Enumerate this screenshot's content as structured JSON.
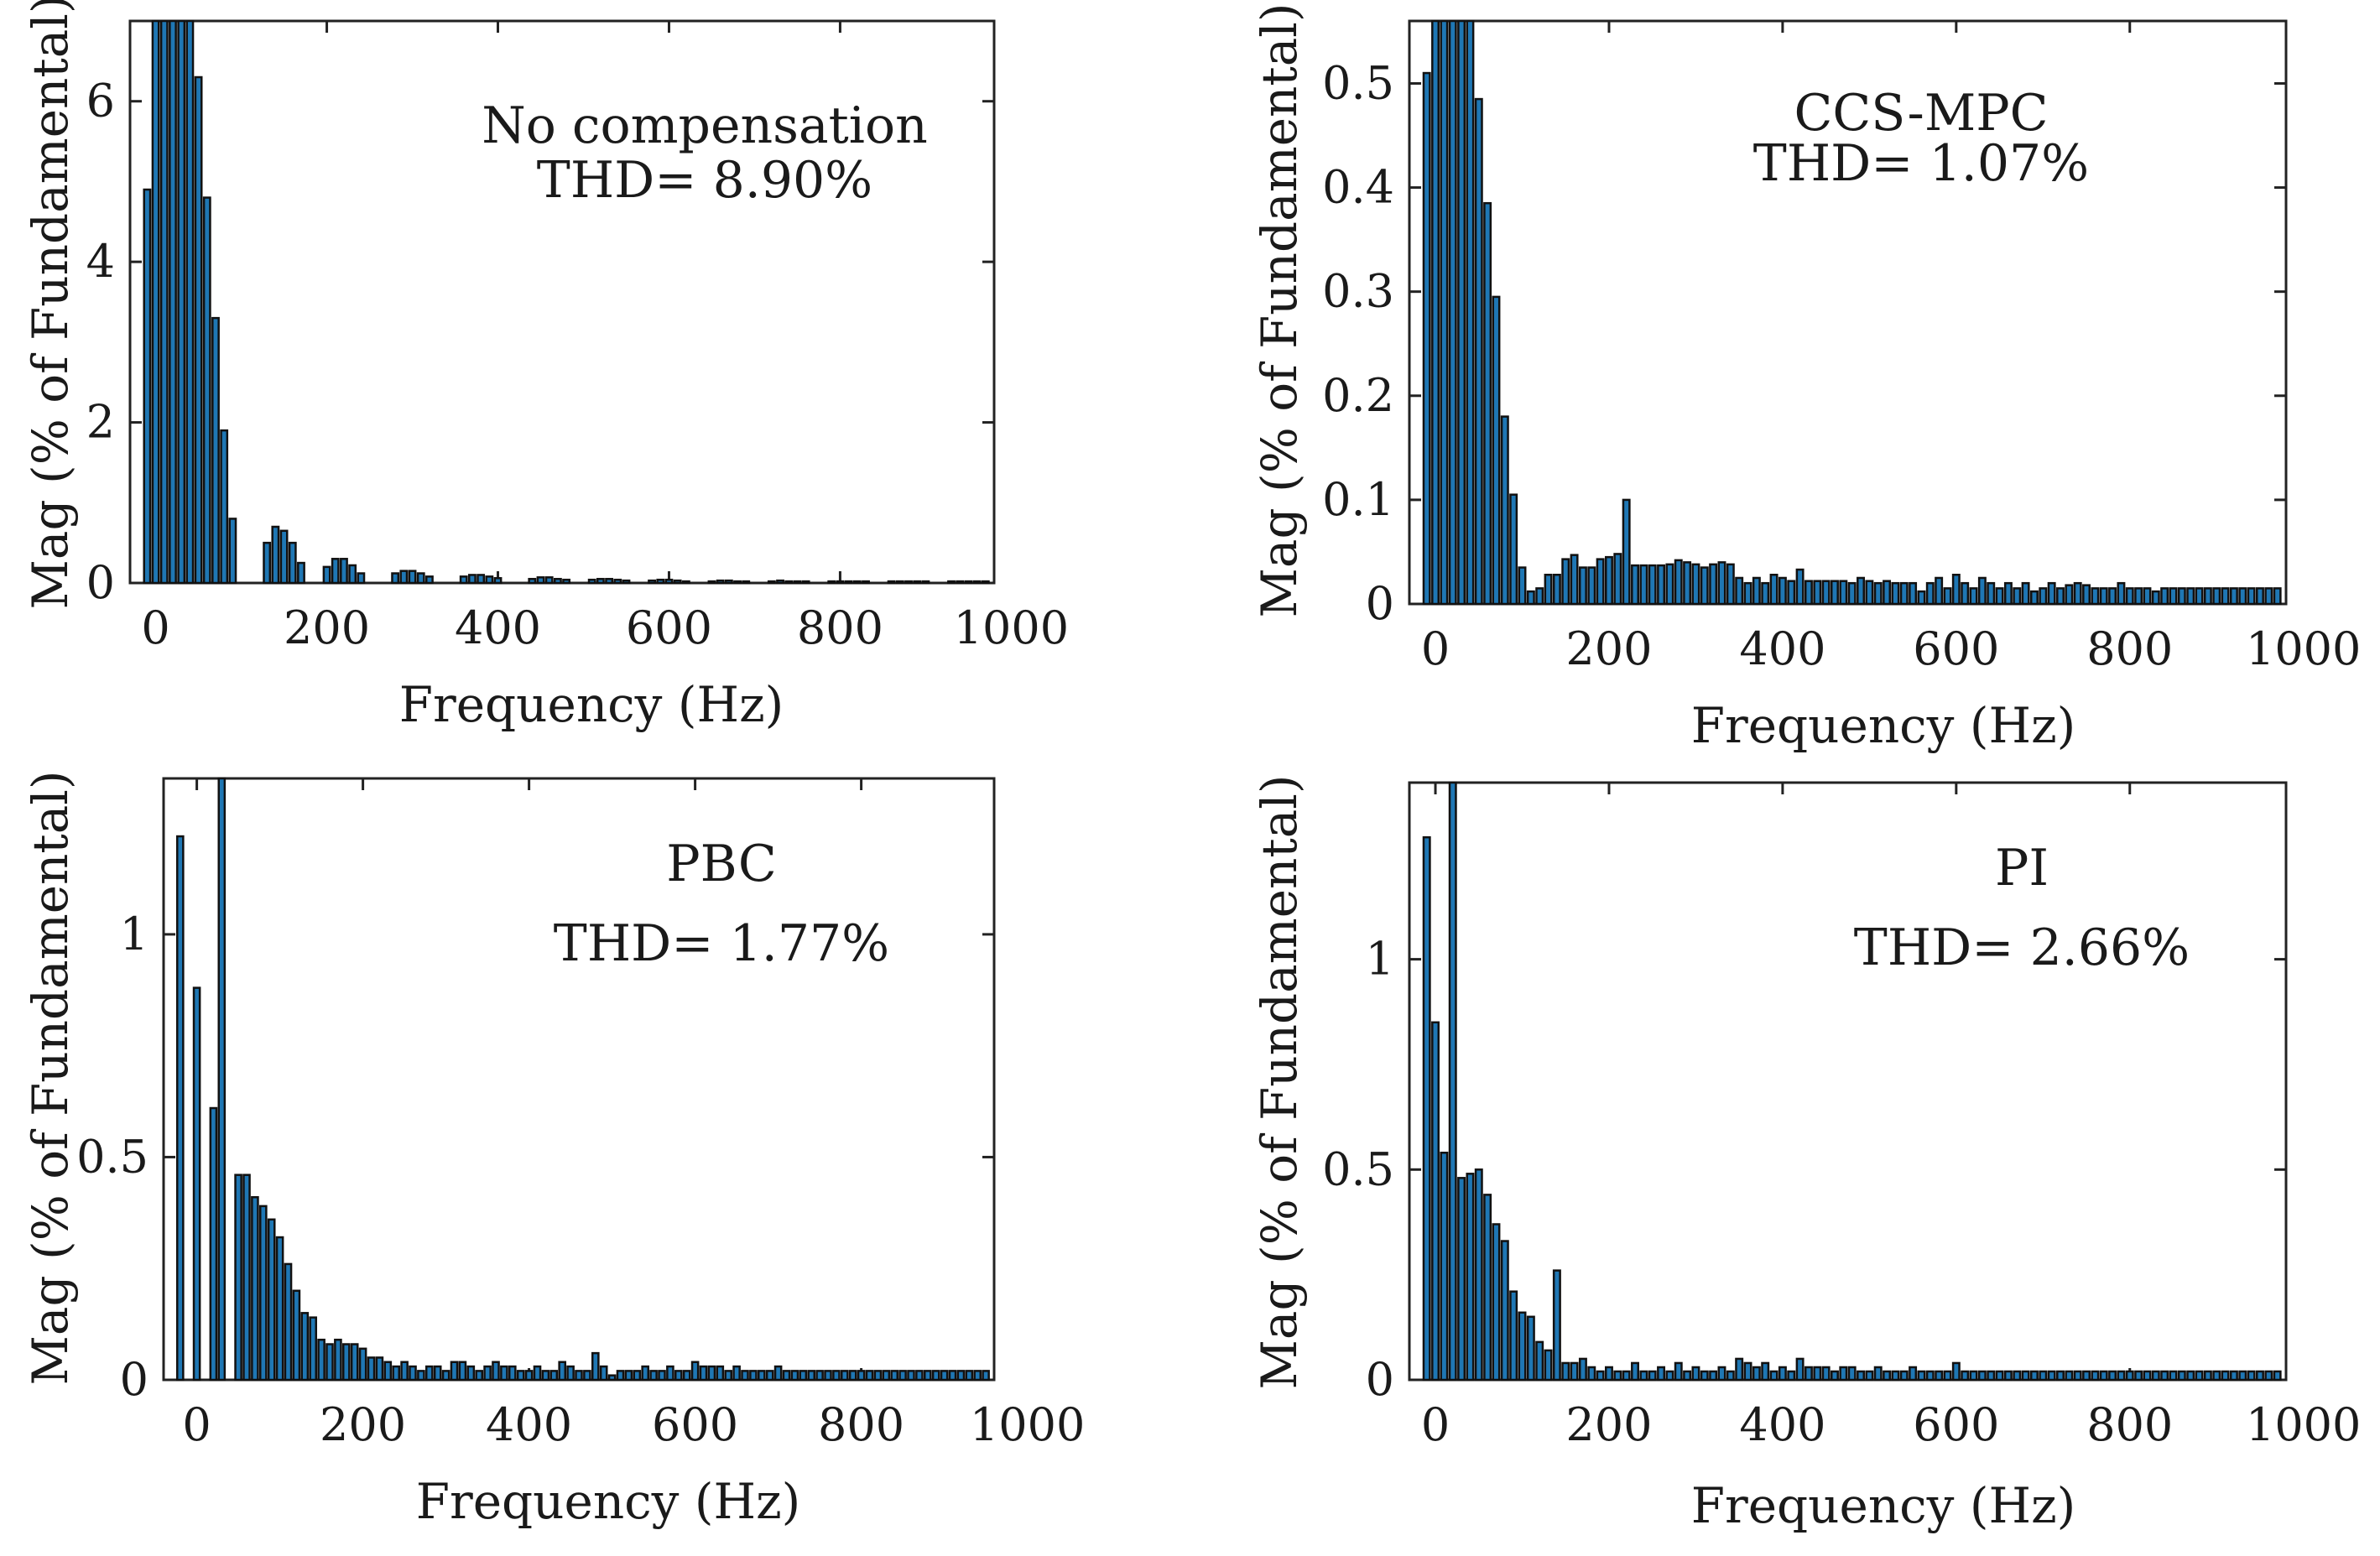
{
  "colors": {
    "bar_fill": "#1f77b4",
    "bar_edge": "#111111",
    "axis": "#222222"
  },
  "chart_data": [
    {
      "type": "bar",
      "xlabel": "Frequency (Hz)",
      "ylabel": "Mag (% of Fundamental)",
      "xlim": [
        -30,
        980
      ],
      "ylim": [
        0,
        7
      ],
      "xticks": [
        0,
        200,
        400,
        600,
        800,
        1000
      ],
      "yticks": [
        0,
        2,
        4,
        6
      ],
      "grid": false,
      "legend": "none",
      "annotations": [
        "No compensation",
        "THD= 8.90%"
      ],
      "x": [
        -10,
        0,
        10,
        20,
        30,
        40,
        50,
        60,
        70,
        80,
        90,
        100,
        110,
        120,
        130,
        140,
        150,
        160,
        170,
        180,
        190,
        200,
        210,
        220,
        230,
        240,
        250,
        260,
        270,
        280,
        290,
        300,
        310,
        320,
        330,
        340,
        350,
        360,
        370,
        380,
        390,
        400,
        410,
        420,
        430,
        440,
        450,
        460,
        470,
        480,
        490,
        500,
        510,
        520,
        530,
        540,
        550,
        560,
        570,
        580,
        590,
        600,
        610,
        620,
        630,
        640,
        650,
        660,
        670,
        680,
        690,
        700,
        710,
        720,
        730,
        740,
        750,
        760,
        770,
        780,
        790,
        800,
        810,
        820,
        830,
        840,
        850,
        860,
        870,
        880,
        890,
        900,
        910,
        920,
        930,
        940,
        950,
        960,
        970
      ],
      "values": [
        4.9,
        7.0,
        7.0,
        7.0,
        7.0,
        7.0,
        6.3,
        4.8,
        3.3,
        1.9,
        0.8,
        0.0,
        0.0,
        0.0,
        0.5,
        0.7,
        0.65,
        0.5,
        0.25,
        0.0,
        0.0,
        0.2,
        0.3,
        0.3,
        0.22,
        0.12,
        0.0,
        0.0,
        0.0,
        0.12,
        0.15,
        0.15,
        0.12,
        0.08,
        0.0,
        0.0,
        0.0,
        0.08,
        0.1,
        0.1,
        0.08,
        0.06,
        0.0,
        0.0,
        0.0,
        0.05,
        0.07,
        0.07,
        0.05,
        0.04,
        0.0,
        0.0,
        0.04,
        0.05,
        0.05,
        0.04,
        0.03,
        0.0,
        0.0,
        0.03,
        0.04,
        0.04,
        0.03,
        0.02,
        0.0,
        0.0,
        0.02,
        0.03,
        0.03,
        0.02,
        0.02,
        0.0,
        0.0,
        0.02,
        0.03,
        0.02,
        0.02,
        0.02,
        0.0,
        0.0,
        0.02,
        0.02,
        0.02,
        0.02,
        0.02,
        0.0,
        0.0,
        0.02,
        0.02,
        0.02,
        0.02,
        0.02,
        0.0,
        0.0,
        0.02,
        0.02,
        0.02,
        0.02,
        0.02
      ]
    },
    {
      "type": "bar",
      "xlabel": "Frequency (Hz)",
      "ylabel": "Mag (% of Fundamental)",
      "xlim": [
        -30,
        980
      ],
      "ylim": [
        0,
        0.56
      ],
      "xticks": [
        0,
        200,
        400,
        600,
        800,
        1000
      ],
      "yticks": [
        0,
        0.1,
        0.2,
        0.3,
        0.4,
        0.5
      ],
      "grid": false,
      "legend": "none",
      "annotations": [
        "CCS-MPC",
        "THD= 1.07%"
      ],
      "x": [
        -10,
        0,
        10,
        20,
        30,
        40,
        50,
        60,
        70,
        80,
        90,
        100,
        110,
        120,
        130,
        140,
        150,
        160,
        170,
        180,
        190,
        200,
        210,
        220,
        230,
        240,
        250,
        260,
        270,
        280,
        290,
        300,
        310,
        320,
        330,
        340,
        350,
        360,
        370,
        380,
        390,
        400,
        410,
        420,
        430,
        440,
        450,
        460,
        470,
        480,
        490,
        500,
        510,
        520,
        530,
        540,
        550,
        560,
        570,
        580,
        590,
        600,
        610,
        620,
        630,
        640,
        650,
        660,
        670,
        680,
        690,
        700,
        710,
        720,
        730,
        740,
        750,
        760,
        770,
        780,
        790,
        800,
        810,
        820,
        830,
        840,
        850,
        860,
        870,
        880,
        890,
        900,
        910,
        920,
        930,
        940,
        950,
        960,
        970
      ],
      "values": [
        0.51,
        0.56,
        0.56,
        0.56,
        0.56,
        0.56,
        0.485,
        0.385,
        0.295,
        0.18,
        0.105,
        0.035,
        0.012,
        0.015,
        0.028,
        0.028,
        0.043,
        0.047,
        0.035,
        0.035,
        0.043,
        0.045,
        0.048,
        0.1,
        0.037,
        0.037,
        0.037,
        0.037,
        0.038,
        0.042,
        0.04,
        0.038,
        0.035,
        0.038,
        0.04,
        0.038,
        0.025,
        0.02,
        0.025,
        0.02,
        0.028,
        0.025,
        0.022,
        0.033,
        0.022,
        0.022,
        0.022,
        0.022,
        0.022,
        0.02,
        0.025,
        0.022,
        0.02,
        0.022,
        0.02,
        0.02,
        0.02,
        0.012,
        0.02,
        0.025,
        0.015,
        0.028,
        0.02,
        0.015,
        0.025,
        0.02,
        0.015,
        0.02,
        0.015,
        0.02,
        0.012,
        0.015,
        0.02,
        0.015,
        0.018,
        0.02,
        0.018,
        0.015,
        0.015,
        0.015,
        0.02,
        0.015,
        0.015,
        0.015,
        0.012,
        0.015,
        0.015,
        0.015,
        0.015,
        0.015,
        0.015,
        0.015,
        0.015,
        0.015,
        0.015,
        0.015,
        0.015,
        0.015,
        0.015
      ]
    },
    {
      "type": "bar",
      "xlabel": "Frequency (Hz)",
      "ylabel": "Mag (% of Fundamental)",
      "xlim": [
        -40,
        960
      ],
      "ylim": [
        0,
        1.35
      ],
      "xticks": [
        0,
        200,
        400,
        600,
        800,
        1000
      ],
      "yticks": [
        0,
        0.5,
        1
      ],
      "grid": false,
      "legend": "none",
      "annotations": [
        "PBC",
        "THD= 1.77%"
      ],
      "x": [
        -20,
        -10,
        0,
        10,
        20,
        30,
        40,
        50,
        60,
        70,
        80,
        90,
        100,
        110,
        120,
        130,
        140,
        150,
        160,
        170,
        180,
        190,
        200,
        210,
        220,
        230,
        240,
        250,
        260,
        270,
        280,
        290,
        300,
        310,
        320,
        330,
        340,
        350,
        360,
        370,
        380,
        390,
        400,
        410,
        420,
        430,
        440,
        450,
        460,
        470,
        480,
        490,
        500,
        510,
        520,
        530,
        540,
        550,
        560,
        570,
        580,
        590,
        600,
        610,
        620,
        630,
        640,
        650,
        660,
        670,
        680,
        690,
        700,
        710,
        720,
        730,
        740,
        750,
        760,
        770,
        780,
        790,
        800,
        810,
        820,
        830,
        840,
        850,
        860,
        870,
        880,
        890,
        900,
        910,
        920,
        930,
        940,
        950
      ],
      "values": [
        1.22,
        0.0,
        0.88,
        0.0,
        0.61,
        1.35,
        0.0,
        0.46,
        0.46,
        0.41,
        0.39,
        0.36,
        0.32,
        0.26,
        0.2,
        0.15,
        0.14,
        0.09,
        0.08,
        0.09,
        0.08,
        0.08,
        0.07,
        0.05,
        0.05,
        0.04,
        0.03,
        0.04,
        0.03,
        0.02,
        0.03,
        0.03,
        0.02,
        0.04,
        0.04,
        0.03,
        0.02,
        0.03,
        0.04,
        0.03,
        0.03,
        0.02,
        0.02,
        0.03,
        0.02,
        0.02,
        0.04,
        0.03,
        0.02,
        0.02,
        0.06,
        0.03,
        0.01,
        0.02,
        0.02,
        0.02,
        0.03,
        0.02,
        0.02,
        0.03,
        0.02,
        0.02,
        0.04,
        0.03,
        0.03,
        0.03,
        0.02,
        0.03,
        0.02,
        0.02,
        0.02,
        0.02,
        0.03,
        0.02,
        0.02,
        0.02,
        0.02,
        0.02,
        0.02,
        0.02,
        0.02,
        0.02,
        0.02,
        0.02,
        0.02,
        0.02,
        0.02,
        0.02,
        0.02,
        0.02,
        0.02,
        0.02,
        0.02,
        0.02,
        0.02,
        0.02,
        0.02,
        0.02
      ]
    },
    {
      "type": "bar",
      "xlabel": "Frequency (Hz)",
      "ylabel": "Mag (% of Fundamental)",
      "xlim": [
        -30,
        980
      ],
      "ylim": [
        0,
        1.42
      ],
      "xticks": [
        0,
        200,
        400,
        600,
        800,
        1000
      ],
      "yticks": [
        0,
        0.5,
        1
      ],
      "grid": false,
      "legend": "none",
      "annotations": [
        "PI",
        "THD= 2.66%"
      ],
      "x": [
        -10,
        0,
        10,
        20,
        30,
        40,
        50,
        60,
        70,
        80,
        90,
        100,
        110,
        120,
        130,
        140,
        150,
        160,
        170,
        180,
        190,
        200,
        210,
        220,
        230,
        240,
        250,
        260,
        270,
        280,
        290,
        300,
        310,
        320,
        330,
        340,
        350,
        360,
        370,
        380,
        390,
        400,
        410,
        420,
        430,
        440,
        450,
        460,
        470,
        480,
        490,
        500,
        510,
        520,
        530,
        540,
        550,
        560,
        570,
        580,
        590,
        600,
        610,
        620,
        630,
        640,
        650,
        660,
        670,
        680,
        690,
        700,
        710,
        720,
        730,
        740,
        750,
        760,
        770,
        780,
        790,
        800,
        810,
        820,
        830,
        840,
        850,
        860,
        870,
        880,
        890,
        900,
        910,
        920,
        930,
        940,
        950,
        960,
        970
      ],
      "values": [
        1.29,
        0.85,
        0.54,
        1.42,
        0.48,
        0.49,
        0.5,
        0.44,
        0.37,
        0.33,
        0.21,
        0.16,
        0.15,
        0.09,
        0.07,
        0.26,
        0.04,
        0.04,
        0.05,
        0.03,
        0.02,
        0.03,
        0.02,
        0.02,
        0.04,
        0.02,
        0.02,
        0.03,
        0.02,
        0.04,
        0.02,
        0.03,
        0.02,
        0.02,
        0.03,
        0.02,
        0.05,
        0.04,
        0.03,
        0.04,
        0.02,
        0.03,
        0.02,
        0.05,
        0.03,
        0.03,
        0.03,
        0.02,
        0.03,
        0.03,
        0.02,
        0.02,
        0.03,
        0.02,
        0.02,
        0.02,
        0.03,
        0.02,
        0.02,
        0.02,
        0.02,
        0.04,
        0.02,
        0.02,
        0.02,
        0.02,
        0.02,
        0.02,
        0.02,
        0.02,
        0.02,
        0.02,
        0.02,
        0.02,
        0.02,
        0.02,
        0.02,
        0.02,
        0.02,
        0.02,
        0.02,
        0.02,
        0.02,
        0.02,
        0.02,
        0.02,
        0.02,
        0.02,
        0.02,
        0.02,
        0.02,
        0.02,
        0.02,
        0.02,
        0.02,
        0.02,
        0.02,
        0.02,
        0.02
      ]
    }
  ]
}
